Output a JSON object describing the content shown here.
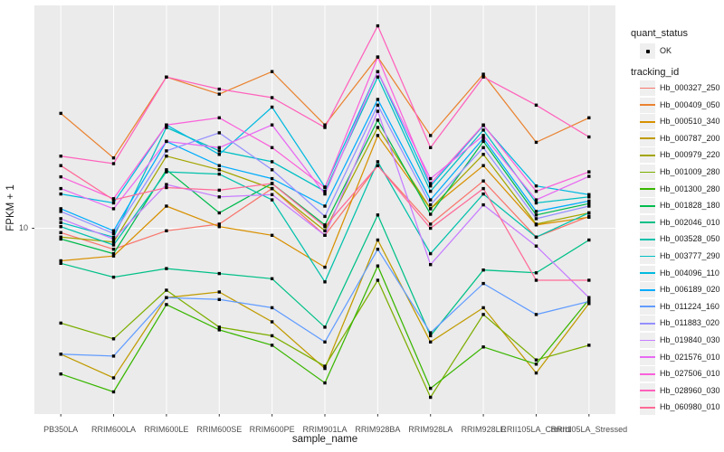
{
  "figure": {
    "y_axis": {
      "title": "FPKM + 1",
      "tick_label": "10"
    },
    "x_axis": {
      "title": "sample_name"
    },
    "legend": {
      "quant_status_title": "quant_status",
      "ok_label": "OK",
      "tracking_id_title": "tracking_id"
    },
    "colors": {
      "panel_bg": "#EBEBEB",
      "grid": "#FFFFFF",
      "axis_text": "#4D4D4D",
      "tick": "#333333",
      "marker": "#000000",
      "legend_key_bg": "#EFEFEF"
    }
  },
  "chart_data": {
    "type": "line",
    "title": "",
    "xlabel": "sample_name",
    "ylabel": "FPKM + 1",
    "x_type": "categorical",
    "y_scale": "log10",
    "y_ticks": [
      10
    ],
    "ylim": [
      1.2,
      130
    ],
    "grid": true,
    "legend_position": "right",
    "point_marker": "black-point (quant_status OK)",
    "categories": [
      "PB350LA",
      "RRIM600LA",
      "RRIM600LE",
      "RRIM600SE",
      "RRIM600PE",
      "RRIM901LA",
      "RRIM928BA",
      "RRIM928LA",
      "RRIM928LE",
      "RRII105LA_Control",
      "RRII105LA_Stressed"
    ],
    "series": [
      {
        "name": "Hb_000327_250",
        "color": "#F8766D",
        "values": [
          9.5,
          7.8,
          9.7,
          10.5,
          16,
          9.2,
          21,
          10.5,
          17.5,
          9,
          11.5
        ]
      },
      {
        "name": "Hb_000409_050",
        "color": "#EA8331",
        "values": [
          39,
          23,
          60,
          49,
          64,
          34,
          76,
          30,
          62,
          27.7,
          37
        ]
      },
      {
        "name": "Hb_000510_340",
        "color": "#D89000",
        "values": [
          6.8,
          7.2,
          13,
          10.2,
          9.2,
          6.3,
          30,
          12.6,
          21,
          10.4,
          11.4
        ]
      },
      {
        "name": "Hb_000787_200",
        "color": "#C09B00",
        "values": [
          2.25,
          1.7,
          4.4,
          4.7,
          3.3,
          1.9,
          8.7,
          2.6,
          3.9,
          1.8,
          4.1
        ]
      },
      {
        "name": "Hb_000979_220",
        "color": "#A3A500",
        "values": [
          9,
          8.5,
          23.5,
          20,
          16,
          9.7,
          33,
          12.6,
          24,
          10.5,
          12
        ]
      },
      {
        "name": "Hb_001009_280",
        "color": "#7CAE00",
        "values": [
          3.25,
          2.7,
          4.8,
          3.1,
          2.8,
          1.95,
          5.4,
          1.35,
          3.6,
          2.1,
          2.5
        ]
      },
      {
        "name": "Hb_001300_280",
        "color": "#39B600",
        "values": [
          1.78,
          1.44,
          4.05,
          3,
          2.5,
          1.6,
          6.4,
          1.5,
          2.45,
          2,
          4.3
        ]
      },
      {
        "name": "Hb_001828_180",
        "color": "#00BB4E",
        "values": [
          8.8,
          7.4,
          20,
          12,
          17,
          10.4,
          36,
          11.8,
          28,
          11.7,
          13.4
        ]
      },
      {
        "name": "Hb_002046_010",
        "color": "#00C087",
        "values": [
          6.6,
          5.6,
          6.2,
          5.85,
          5.5,
          3.1,
          11.7,
          2.8,
          6.1,
          5.9,
          8.7
        ]
      },
      {
        "name": "Hb_003528_050",
        "color": "#00C1AB",
        "values": [
          10.2,
          8.2,
          19.5,
          19,
          14,
          5.3,
          22,
          7.4,
          15,
          9,
          12
        ]
      },
      {
        "name": "Hb_003777_290",
        "color": "#00BFC4",
        "values": [
          10.7,
          9,
          33,
          25,
          22,
          15.5,
          60,
          15.5,
          32,
          13.5,
          14.5
        ]
      },
      {
        "name": "Hb_004096_110",
        "color": "#00BAE0",
        "values": [
          15,
          13.5,
          34,
          24,
          42,
          16.3,
          64,
          16.5,
          33.8,
          16.5,
          14.9
        ]
      },
      {
        "name": "Hb_006189_020",
        "color": "#00ACFC",
        "values": [
          12.6,
          9.7,
          28,
          21,
          18,
          13,
          46,
          14,
          29,
          12.2,
          13.8
        ]
      },
      {
        "name": "Hb_011224_160",
        "color": "#619CFF",
        "values": [
          2.25,
          2.2,
          4.4,
          4.3,
          3.9,
          2.6,
          7.8,
          2.9,
          5.2,
          3.6,
          4.2
        ]
      },
      {
        "name": "Hb_011883_020",
        "color": "#9590FF",
        "values": [
          12.2,
          9.4,
          25,
          31,
          20,
          11.5,
          43,
          13.2,
          26,
          11.2,
          13
        ]
      },
      {
        "name": "Hb_019840_030",
        "color": "#C77CFF",
        "values": [
          11.2,
          8.8,
          16.8,
          14.5,
          14.9,
          9.2,
          40,
          6.5,
          13.2,
          8.1,
          4.4
        ]
      },
      {
        "name": "Hb_021576_010",
        "color": "#E76BF3",
        "values": [
          16,
          12.6,
          28,
          26,
          34,
          15,
          64,
          18,
          30,
          14,
          18.5
        ]
      },
      {
        "name": "Hb_027506_010",
        "color": "#FA62DB",
        "values": [
          18.4,
          14.2,
          34,
          37,
          26,
          16.2,
          76,
          17,
          34,
          15.5,
          19.5
        ]
      },
      {
        "name": "Hb_028960_030",
        "color": "#FF62BC",
        "values": [
          23.5,
          21.5,
          60,
          52,
          47,
          33,
          110,
          26,
          60,
          43,
          29.5
        ]
      },
      {
        "name": "Hb_060980_010",
        "color": "#FF6A98",
        "values": [
          21,
          14,
          16.2,
          15.7,
          17,
          10.2,
          21,
          10,
          16,
          5.4,
          5.4
        ]
      }
    ],
    "quant_status": {
      "label": "OK",
      "marker": "black point"
    }
  }
}
